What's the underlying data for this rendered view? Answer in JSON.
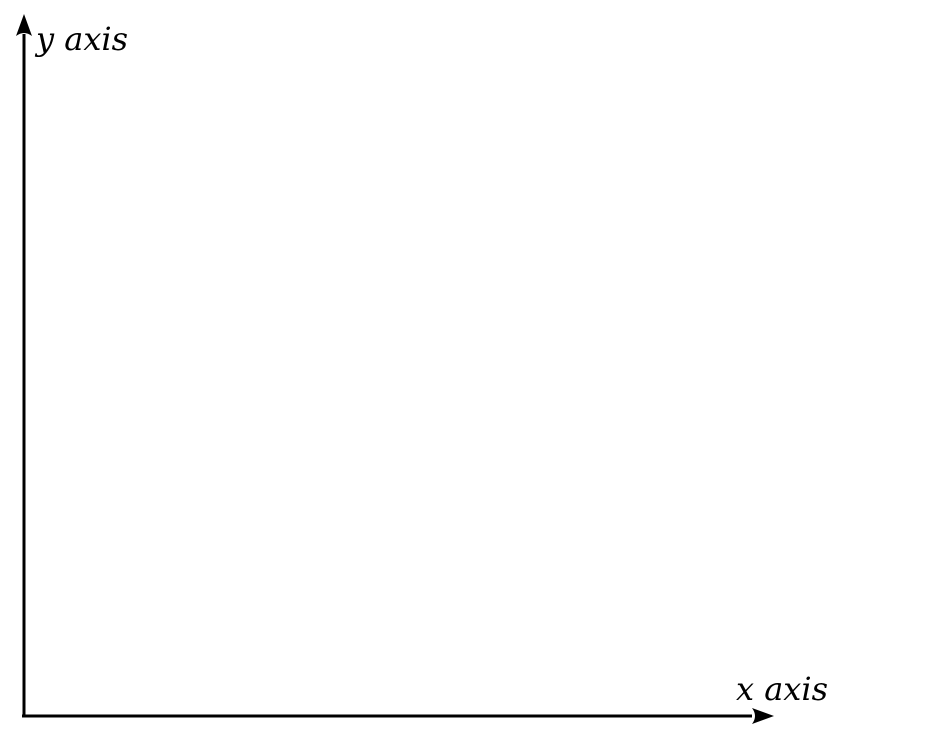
{
  "diagram": {
    "x_axis_label": "x axis",
    "y_axis_label": "y axis",
    "axis_color": "#000000",
    "background_color": "#ffffff"
  }
}
